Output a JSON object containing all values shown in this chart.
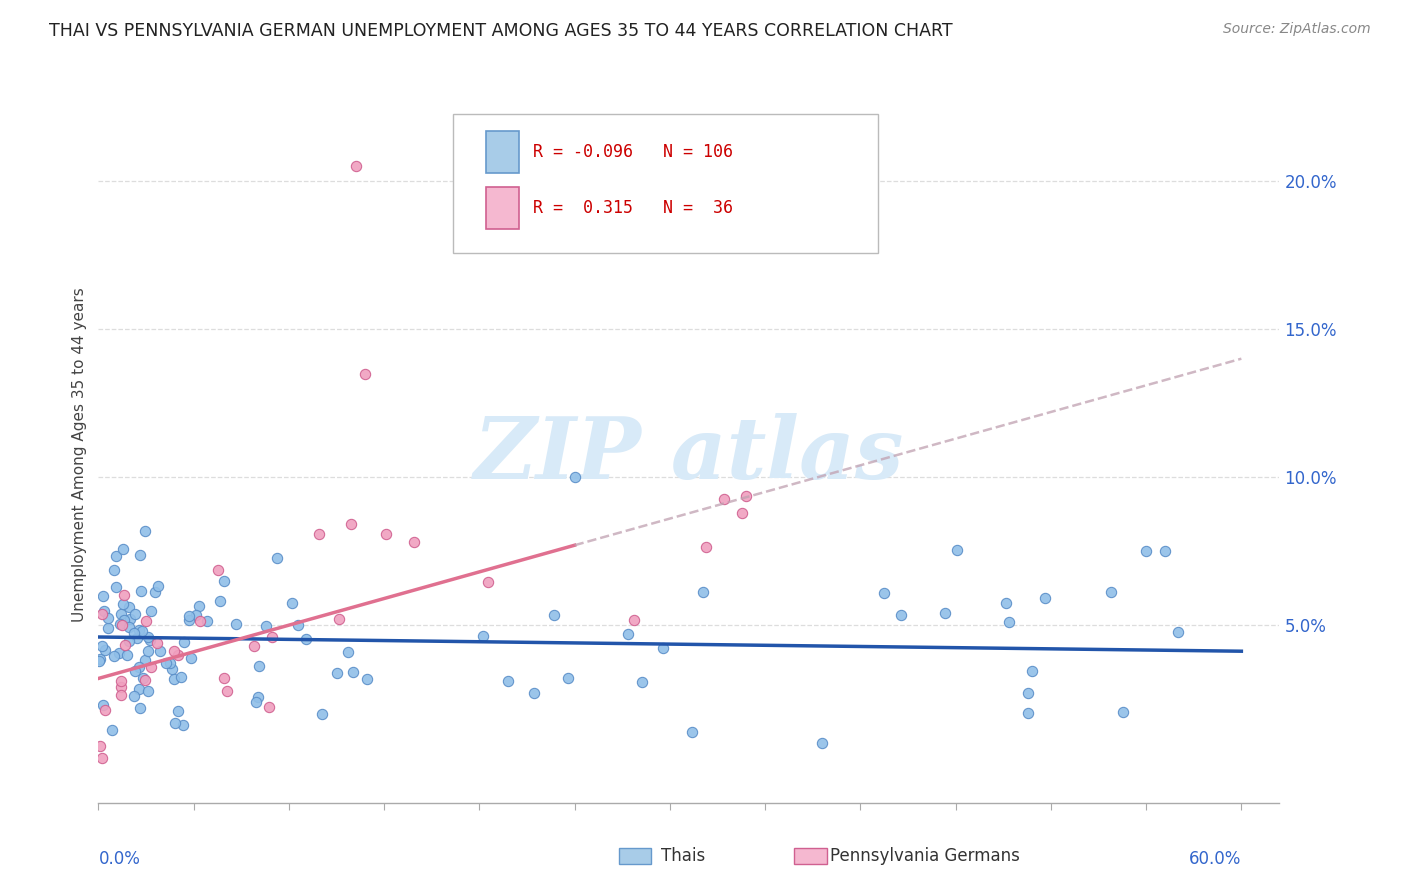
{
  "title": "THAI VS PENNSYLVANIA GERMAN UNEMPLOYMENT AMONG AGES 35 TO 44 YEARS CORRELATION CHART",
  "source": "Source: ZipAtlas.com",
  "ylabel": "Unemployment Among Ages 35 to 44 years",
  "ytick_vals": [
    0.05,
    0.1,
    0.15,
    0.2
  ],
  "ytick_labels": [
    "5.0%",
    "10.0%",
    "15.0%",
    "20.0%"
  ],
  "xlim": [
    0.0,
    0.62
  ],
  "ylim": [
    -0.01,
    0.225
  ],
  "thai_color": "#90bfe8",
  "thai_edge_color": "#5a8ec8",
  "pa_color": "#f0a0bf",
  "pa_edge_color": "#d06090",
  "thai_trend_color": "#2255aa",
  "pa_trend_color": "#e07090",
  "watermark_color": "#d8eaf8",
  "legend_R1": "R = -0.096",
  "legend_N1": "N = 106",
  "legend_R2": "R =  0.315",
  "legend_N2": "N =  36",
  "legend_label1": "Thais",
  "legend_label2": "Pennsylvania Germans",
  "thai_trend_slope": -0.008,
  "thai_trend_intercept": 0.046,
  "pa_trend_slope": 0.18,
  "pa_trend_intercept": 0.032
}
